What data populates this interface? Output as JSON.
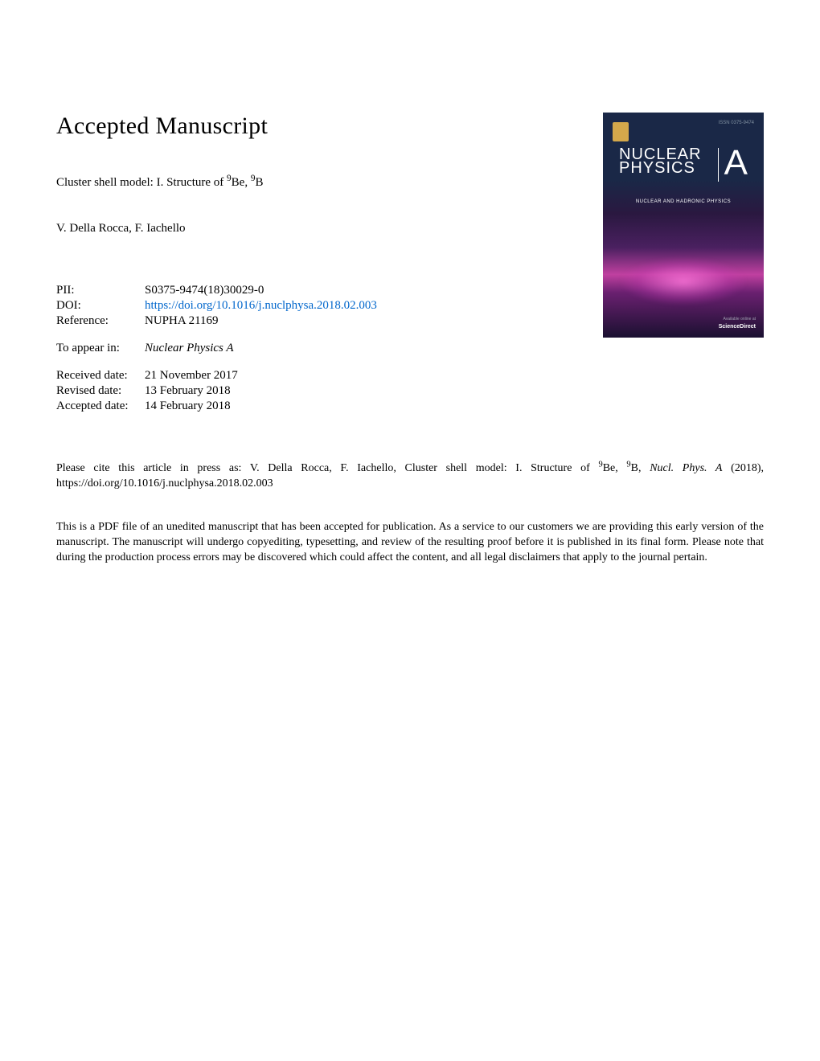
{
  "heading": "Accepted Manuscript",
  "article_title_prefix": "Cluster shell model: I. Structure of ",
  "article_title_be": "Be, ",
  "article_title_b": "B",
  "sup9": "9",
  "authors": "V. Della Rocca, F. Iachello",
  "meta": {
    "pii_label": "PII:",
    "pii_value": "S0375-9474(18)30029-0",
    "doi_label": "DOI:",
    "doi_value": "https://doi.org/10.1016/j.nuclphysa.2018.02.003",
    "ref_label": "Reference:",
    "ref_value": "NUPHA 21169",
    "appear_label": "To appear in:",
    "appear_value": "Nuclear Physics A",
    "received_label": "Received date:",
    "received_value": "21 November 2017",
    "revised_label": "Revised date:",
    "revised_value": "13 February 2018",
    "accepted_label": "Accepted date:",
    "accepted_value": "14 February 2018"
  },
  "cover": {
    "title_line1": "NUCLEAR",
    "title_line2": "PHYSICS",
    "letter": "A",
    "subtitle": "NUCLEAR AND HADRONIC PHYSICS",
    "issn": "ISSN 0375-9474",
    "sd": "ScienceDirect",
    "sd_sub": "Available online at",
    "background_color": "#1a2847",
    "accent_color": "#c040a0"
  },
  "citation_prefix": "Please cite this article in press as: V. Della Rocca, F. Iachello, Cluster shell model: I. Structure of ",
  "citation_journal": "Nucl. Phys. A",
  "citation_year": " (2018), https://doi.org/10.1016/j.nuclphysa.2018.02.003",
  "disclaimer": "This is a PDF file of an unedited manuscript that has been accepted for publication. As a service to our customers we are providing this early version of the manuscript. The manuscript will undergo copyediting, typesetting, and review of the resulting proof before it is published in its final form. Please note that during the production process errors may be discovered which could affect the content, and all legal disclaimers that apply to the journal pertain.",
  "colors": {
    "link": "#0066cc",
    "text": "#000000",
    "background": "#ffffff"
  },
  "typography": {
    "heading_fontsize": 30,
    "body_fontsize": 15,
    "small_fontsize": 14,
    "font_family": "Times New Roman"
  }
}
